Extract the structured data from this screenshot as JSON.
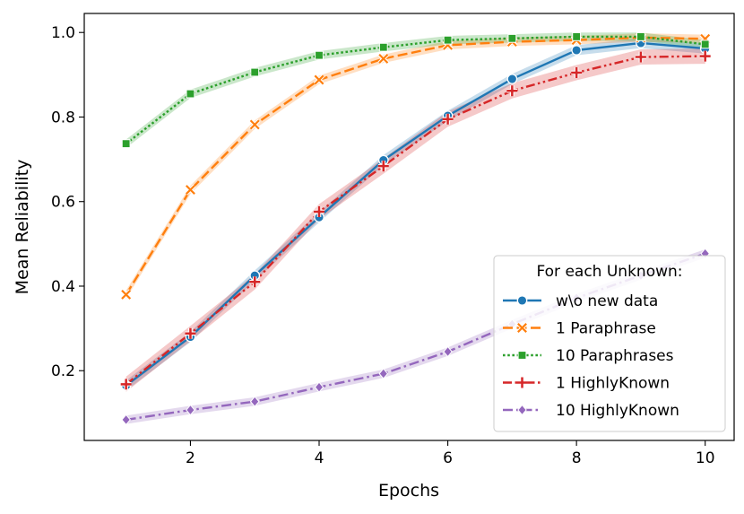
{
  "chart_data": {
    "type": "line",
    "xlabel": "Epochs",
    "ylabel": "Mean Reliability",
    "xlim": [
      0.35,
      10.45
    ],
    "ylim": [
      0.035,
      1.045
    ],
    "x_ticks": [
      2,
      4,
      6,
      8,
      10
    ],
    "y_ticks": [
      0.2,
      0.4,
      0.6,
      0.8,
      1.0
    ],
    "x_tick_labels": [
      "2",
      "4",
      "6",
      "8",
      "10"
    ],
    "y_tick_labels": [
      "0.2",
      "0.4",
      "0.6",
      "0.8",
      "1.0"
    ],
    "x": [
      1,
      2,
      3,
      4,
      5,
      6,
      7,
      8,
      9,
      10
    ],
    "legend": {
      "title": "For each Unknown:",
      "position": "lower-right"
    },
    "series": [
      {
        "name": "w\\o new data",
        "color": "#1f77b4",
        "dash": "solid",
        "marker": "circle",
        "values": [
          0.165,
          0.28,
          0.425,
          0.563,
          0.698,
          0.803,
          0.89,
          0.958,
          0.975,
          0.962
        ],
        "band": 0.012
      },
      {
        "name": "1 Paraphrase",
        "color": "#ff7f0e",
        "dash": "dashed",
        "marker": "x",
        "values": [
          0.38,
          0.628,
          0.782,
          0.888,
          0.938,
          0.97,
          0.978,
          0.982,
          0.988,
          0.985
        ],
        "band": 0.01
      },
      {
        "name": "10  Paraphrases",
        "color": "#2ca02c",
        "dash": "dotted",
        "marker": "square",
        "values": [
          0.737,
          0.855,
          0.906,
          0.946,
          0.965,
          0.982,
          0.986,
          0.99,
          0.99,
          0.972
        ],
        "band": 0.01
      },
      {
        "name": "1 HighlyKnown",
        "color": "#d62728",
        "dash": "dashdotdot",
        "marker": "plus",
        "values": [
          0.168,
          0.288,
          0.41,
          0.576,
          0.684,
          0.795,
          0.862,
          0.905,
          0.942,
          0.944
        ],
        "band": 0.018
      },
      {
        "name": "10 HighlyKnown",
        "color": "#9467bd",
        "dash": "dashdot",
        "marker": "diamond",
        "values": [
          0.084,
          0.107,
          0.127,
          0.161,
          0.193,
          0.245,
          0.31,
          0.372,
          0.425,
          0.477
        ],
        "band": 0.01
      }
    ]
  }
}
